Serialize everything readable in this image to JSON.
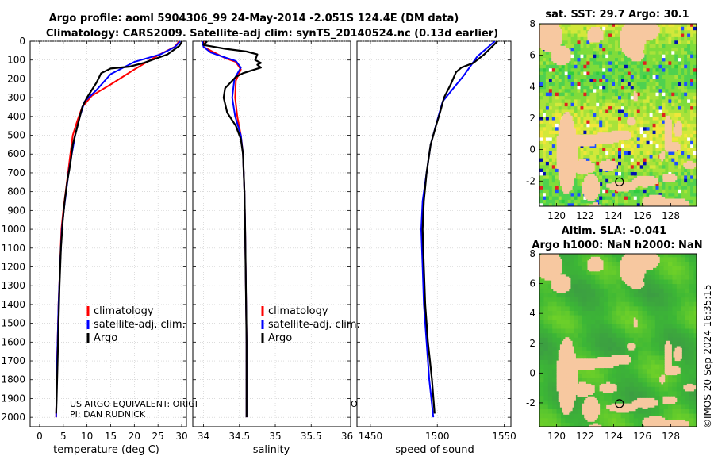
{
  "title": {
    "line1": "Argo profile: aoml 5904306_99 24-May-2014 -2.051S 124.4E (DM data)",
    "line2": "Climatology: CARS2009. Satellite-adj clim: synTS_20140524.nc (0.13d earlier)"
  },
  "watermark": "©IMOS 20-Sep-2024 16:35:15",
  "note": {
    "line1": "US ARGO EQUIVALENT: ORIGI",
    "line1_tail": "O",
    "line2": "PI: DAN RUDNICK"
  },
  "legend": {
    "entries": [
      "climatology",
      "satellite-adj. clim.",
      "Argo"
    ]
  },
  "colors": {
    "climatology": "#ff0000",
    "satellite": "#0000ff",
    "argo": "#000000",
    "land": "#f7c8a0"
  },
  "chart_data": [
    {
      "type": "line",
      "name": "temperature",
      "xlabel": "temperature (deg C)",
      "ylabel": "",
      "xlim": [
        -2,
        31
      ],
      "ylim": [
        2050,
        0
      ],
      "xticks": [
        0,
        5,
        10,
        15,
        20,
        25,
        30
      ],
      "yticks": [
        0,
        100,
        200,
        300,
        400,
        500,
        600,
        700,
        800,
        900,
        1000,
        1100,
        1200,
        1300,
        1400,
        1500,
        1600,
        1700,
        1800,
        1900,
        2000
      ],
      "series": [
        {
          "name": "climatology",
          "points": [
            [
              29.5,
              0
            ],
            [
              28.5,
              30
            ],
            [
              25,
              75
            ],
            [
              20,
              150
            ],
            [
              15,
              230
            ],
            [
              11,
              290
            ],
            [
              9,
              350
            ],
            [
              8,
              420
            ],
            [
              7,
              500
            ],
            [
              6.5,
              600
            ],
            [
              6,
              700
            ],
            [
              5.5,
              800
            ],
            [
              5,
              900
            ],
            [
              4.6,
              1000
            ],
            [
              4.3,
              1200
            ],
            [
              4,
              1400
            ],
            [
              3.8,
              1600
            ],
            [
              3.6,
              1800
            ],
            [
              3.5,
              2000
            ]
          ]
        },
        {
          "name": "satellite-adj. clim.",
          "points": [
            [
              29.7,
              0
            ],
            [
              28.6,
              30
            ],
            [
              25.5,
              70
            ],
            [
              20,
              110
            ],
            [
              15,
              175
            ],
            [
              12,
              260
            ],
            [
              9.5,
              320
            ],
            [
              8.5,
              400
            ],
            [
              7.5,
              500
            ],
            [
              6.8,
              600
            ],
            [
              6.1,
              700
            ],
            [
              5.6,
              800
            ],
            [
              5.1,
              900
            ],
            [
              4.7,
              1000
            ],
            [
              4.3,
              1200
            ],
            [
              4,
              1400
            ],
            [
              3.8,
              1600
            ],
            [
              3.6,
              1800
            ],
            [
              3.5,
              2000
            ]
          ]
        },
        {
          "name": "Argo",
          "points": [
            [
              30.1,
              0
            ],
            [
              29.5,
              25
            ],
            [
              27,
              70
            ],
            [
              22,
              115
            ],
            [
              19,
              135
            ],
            [
              15,
              145
            ],
            [
              13,
              170
            ],
            [
              12,
              220
            ],
            [
              10,
              300
            ],
            [
              9,
              350
            ],
            [
              8,
              450
            ],
            [
              7,
              550
            ],
            [
              6.5,
              650
            ],
            [
              5.8,
              750
            ],
            [
              5.3,
              850
            ],
            [
              4.9,
              950
            ],
            [
              4.5,
              1100
            ],
            [
              4.2,
              1300
            ],
            [
              4,
              1500
            ],
            [
              3.8,
              1700
            ],
            [
              3.6,
              1900
            ],
            [
              3.5,
              1980
            ]
          ]
        }
      ]
    },
    {
      "type": "line",
      "name": "salinity",
      "xlabel": "salinity",
      "ylabel": "",
      "xlim": [
        33.85,
        36.05
      ],
      "ylim": [
        2050,
        0
      ],
      "xticks": [
        34,
        34.5,
        35,
        35.5,
        36
      ],
      "xticklabels": [
        "34",
        "34.5",
        "35",
        "35.5",
        "36"
      ],
      "series": [
        {
          "name": "climatology",
          "points": [
            [
              34.0,
              0
            ],
            [
              34.0,
              30
            ],
            [
              34.15,
              60
            ],
            [
              34.3,
              90
            ],
            [
              34.45,
              110
            ],
            [
              34.52,
              150
            ],
            [
              34.45,
              210
            ],
            [
              34.44,
              300
            ],
            [
              34.47,
              400
            ],
            [
              34.52,
              500
            ],
            [
              34.55,
              600
            ],
            [
              34.57,
              800
            ],
            [
              34.58,
              1000
            ],
            [
              34.59,
              1300
            ],
            [
              34.6,
              1600
            ],
            [
              34.6,
              2000
            ]
          ]
        },
        {
          "name": "satellite-adj. clim.",
          "points": [
            [
              33.98,
              0
            ],
            [
              34.0,
              30
            ],
            [
              34.1,
              60
            ],
            [
              34.25,
              80
            ],
            [
              34.45,
              105
            ],
            [
              34.52,
              140
            ],
            [
              34.43,
              200
            ],
            [
              34.4,
              300
            ],
            [
              34.44,
              400
            ],
            [
              34.52,
              500
            ],
            [
              34.55,
              600
            ],
            [
              34.57,
              800
            ],
            [
              34.58,
              1000
            ],
            [
              34.59,
              1300
            ],
            [
              34.6,
              1600
            ],
            [
              34.6,
              2000
            ]
          ]
        },
        {
          "name": "Argo",
          "points": [
            [
              34.05,
              0
            ],
            [
              34.0,
              20
            ],
            [
              34.3,
              40
            ],
            [
              34.6,
              55
            ],
            [
              34.75,
              70
            ],
            [
              34.72,
              100
            ],
            [
              34.8,
              115
            ],
            [
              34.75,
              125
            ],
            [
              34.8,
              140
            ],
            [
              34.55,
              170
            ],
            [
              34.45,
              190
            ],
            [
              34.3,
              250
            ],
            [
              34.28,
              300
            ],
            [
              34.33,
              380
            ],
            [
              34.45,
              450
            ],
            [
              34.52,
              520
            ],
            [
              34.55,
              600
            ],
            [
              34.57,
              800
            ],
            [
              34.58,
              1000
            ],
            [
              34.59,
              1300
            ],
            [
              34.6,
              1600
            ],
            [
              34.6,
              2000
            ]
          ]
        }
      ]
    },
    {
      "type": "line",
      "name": "speed of sound",
      "xlabel": "speed of sound",
      "ylabel": "",
      "xlim": [
        1440,
        1555
      ],
      "ylim": [
        2050,
        0
      ],
      "xticks": [
        1450,
        1500,
        1550
      ],
      "series": [
        {
          "name": "satellite-adj. clim.",
          "points": [
            [
              1543,
              0
            ],
            [
              1530,
              80
            ],
            [
              1520,
              180
            ],
            [
              1512,
              250
            ],
            [
              1504,
              320
            ],
            [
              1500,
              420
            ],
            [
              1495,
              550
            ],
            [
              1492,
              700
            ],
            [
              1489,
              850
            ],
            [
              1488,
              1000
            ],
            [
              1489,
              1200
            ],
            [
              1490,
              1400
            ],
            [
              1492,
              1600
            ],
            [
              1494,
              1800
            ],
            [
              1497,
              2000
            ]
          ]
        },
        {
          "name": "Argo",
          "points": [
            [
              1545,
              0
            ],
            [
              1535,
              70
            ],
            [
              1527,
              115
            ],
            [
              1518,
              140
            ],
            [
              1514,
              165
            ],
            [
              1510,
              230
            ],
            [
              1505,
              300
            ],
            [
              1502,
              380
            ],
            [
              1499,
              450
            ],
            [
              1495,
              550
            ],
            [
              1492,
              700
            ],
            [
              1490,
              850
            ],
            [
              1489,
              1000
            ],
            [
              1490,
              1200
            ],
            [
              1491,
              1400
            ],
            [
              1493,
              1600
            ],
            [
              1496,
              1800
            ],
            [
              1498,
              1980
            ]
          ]
        }
      ]
    },
    {
      "type": "heatmap",
      "name": "sst-map",
      "title": "sat. SST: 29.7 Argo: 30.1",
      "xlim": [
        118.8,
        129.8
      ],
      "ylim": [
        -3.6,
        8
      ],
      "xticks": [
        120,
        122,
        124,
        126,
        128
      ],
      "yticks": [
        -2,
        0,
        2,
        4,
        6,
        8
      ],
      "marker": [
        124.4,
        -2.051
      ]
    },
    {
      "type": "heatmap",
      "name": "sla-map",
      "title1": "Altim. SLA: -0.041",
      "title2": "Argo h1000: NaN h2000: NaN",
      "xlim": [
        118.8,
        129.8
      ],
      "ylim": [
        -3.6,
        8
      ],
      "xticks": [
        120,
        122,
        124,
        126,
        128
      ],
      "yticks": [
        -2,
        0,
        2,
        4,
        6,
        8
      ],
      "marker": [
        124.4,
        -2.051
      ]
    }
  ]
}
